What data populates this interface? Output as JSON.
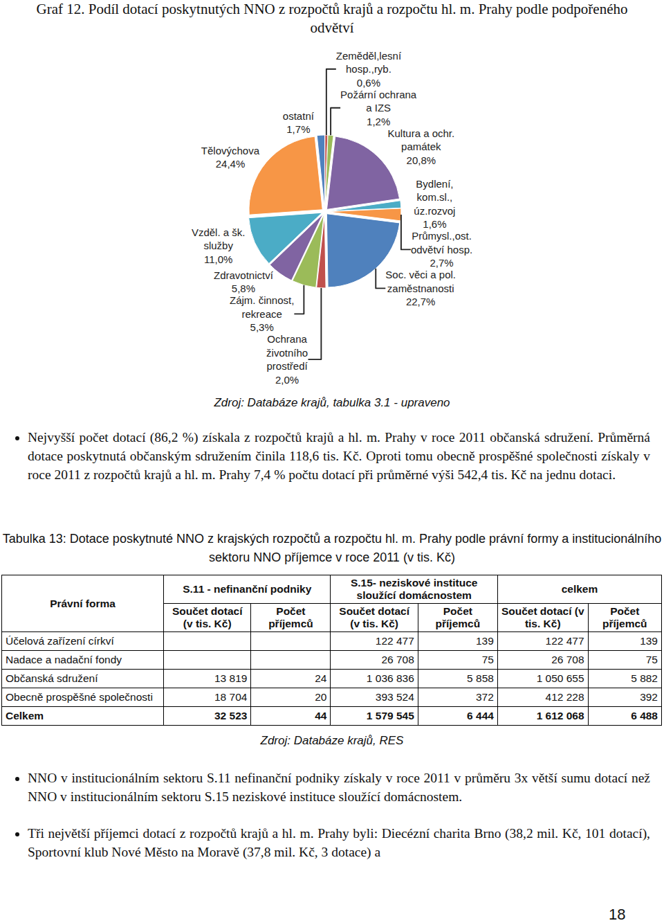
{
  "chart_data": {
    "type": "pie",
    "title": "Graf 12. Podíl dotací poskytnutých NNO z rozpočtů krajů a rozpočtu hl. m. Prahy podle podpořeného odvětví",
    "categories": [
      "ostatní",
      "Zeměděl,lesní hosp.,ryb.",
      "Požární ochrana a IZS",
      "Kultura a ochr. památek",
      "Bydlení, kom.sl., úz.rozvoj",
      "Průmysl.,ost. odvětví hosp.",
      "Soc. věci a pol. zaměstnanosti",
      "Ochrana životního prostředí",
      "Zájm. činnost, rekreace",
      "Zdravotnictví",
      "Vzděl. a šk. služby",
      "Tělovýchova"
    ],
    "values": [
      1.7,
      0.6,
      1.2,
      20.8,
      1.6,
      2.7,
      22.7,
      2.0,
      5.3,
      5.8,
      11.0,
      24.4
    ],
    "value_labels": [
      "1,7%",
      "0,6%",
      "1,2%",
      "20,8%",
      "1,6%",
      "2,7%",
      "22,7%",
      "2,0%",
      "5,3%",
      "5,8%",
      "11,0%",
      "24,4%"
    ],
    "colors": [
      "#4F81BD",
      "#C0504D",
      "#9BBB59",
      "#8064A2",
      "#4BACC6",
      "#F79646",
      "#4F81BD",
      "#C0504D",
      "#9BBB59",
      "#8064A2",
      "#4BACC6",
      "#F79646"
    ],
    "data_labels": true
  },
  "chart_source": "Zdroj: Databáze krajů, tabulka 3.1 - upraveno",
  "paragraphs_1": [
    "Nejvyšší počet dotací (86,2 %) získala z rozpočtů krajů a hl. m. Prahy v roce 2011 občanská sdružení. Průměrná dotace poskytnutá občanským sdružením činila 118,6 tis. Kč. Oproti tomu obecně prospěšné společnosti získaly v roce 2011 z rozpočtů krajů a hl. m. Prahy 7,4 % počtu dotací při průměrné výši 542,4 tis. Kč na jednu dotaci."
  ],
  "table": {
    "title": "Tabulka 13: Dotace poskytnuté NNO z krajských rozpočtů a rozpočtu hl. m. Prahy podle právní formy a institucionálního sektoru NNO příjemce v roce 2011 (v tis. Kč)",
    "header": {
      "first": "Právní forma",
      "groups": [
        "S.11 - nefinanční podniky",
        "S.15- neziskové instituce sloužící domácnostem",
        "celkem"
      ],
      "sub": [
        "Součet dotací (v tis. Kč)",
        "Počet příjemců"
      ]
    },
    "rows": [
      [
        "Účelová zařízení církví",
        null,
        null,
        "122 477",
        "139",
        "122 477",
        "139"
      ],
      [
        "Nadace a nadační fondy",
        null,
        null,
        "26 708",
        "75",
        "26 708",
        "75"
      ],
      [
        "Občanská sdružení",
        "13 819",
        "24",
        "1 036 836",
        "5 858",
        "1 050 655",
        "5 882"
      ],
      [
        "Obecně prospěšné společnosti",
        "18 704",
        "20",
        "393 524",
        "372",
        "412 228",
        "392"
      ],
      [
        "Celkem",
        "32 523",
        "44",
        "1 579 545",
        "6 444",
        "1 612 068",
        "6 488"
      ]
    ],
    "source": "Zdroj: Databáze krajů, RES"
  },
  "paragraphs_2": [
    "NNO v institucionálním sektoru S.11 nefinanční podniky získaly v roce 2011 v průměru 3x větší sumu dotací než NNO v institucionálním sektoru S.15 neziskové instituce sloužící domácnostem.",
    "Tři největší příjemci dotací z rozpočtů krajů a hl. m. Prahy byli: Diecézní charita Brno (38,2 mil. Kč, 101 dotací), Sportovní klub Nové Město na Moravě (37,8 mil. Kč, 3 dotace) a"
  ],
  "page_number": "18"
}
